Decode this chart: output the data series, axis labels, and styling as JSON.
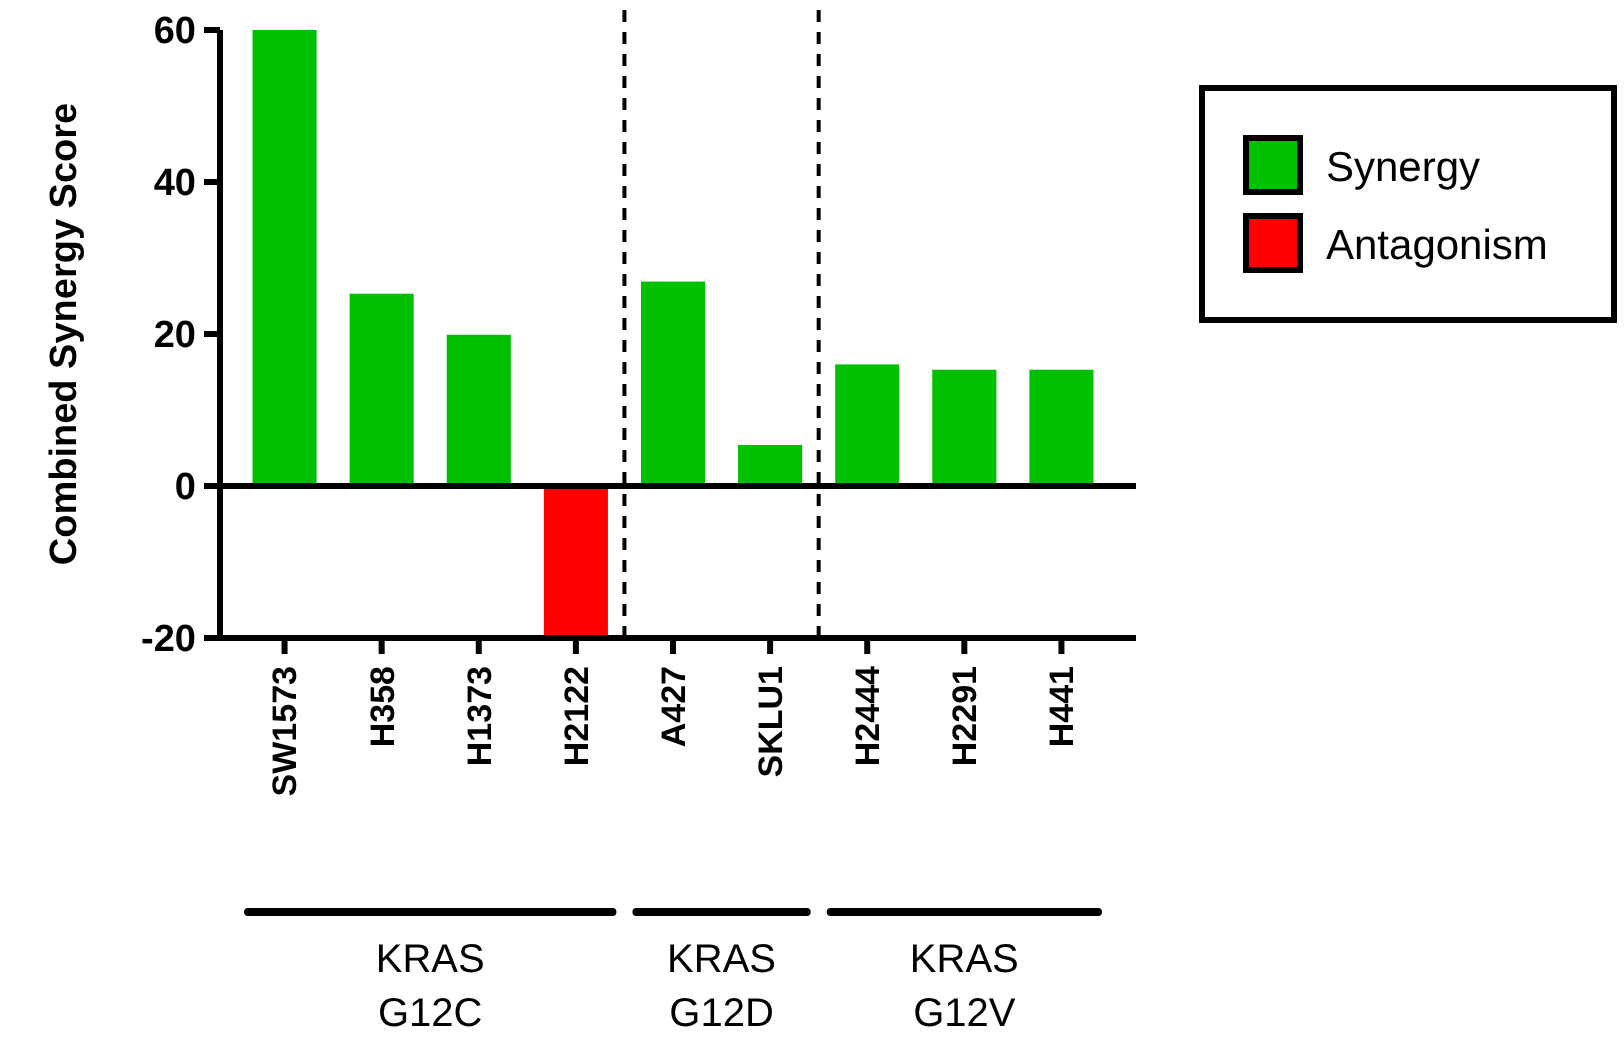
{
  "chart_data": {
    "type": "bar",
    "ylabel": "Combined Synergy Score",
    "categories": [
      "SW1573",
      "H358",
      "H1373",
      "H2122",
      "A427",
      "SKLU1",
      "H2444",
      "H2291",
      "H441"
    ],
    "series": [
      {
        "name": "Synergy",
        "color": "#00c000",
        "values": [
          60,
          25.3,
          19.9,
          null,
          26.9,
          5.4,
          16,
          15.3,
          15.3
        ]
      },
      {
        "name": "Antagonism",
        "color": "#ff0000",
        "values": [
          null,
          null,
          null,
          -20,
          null,
          null,
          null,
          null,
          null
        ]
      }
    ],
    "ylim": [
      -20,
      60
    ],
    "yticks": [
      -20,
      0,
      20,
      40,
      60
    ],
    "grid": false,
    "legend": "right",
    "annotations": [
      "KRAS G12C",
      "KRAS G12D",
      "KRAS G12V"
    ]
  }
}
